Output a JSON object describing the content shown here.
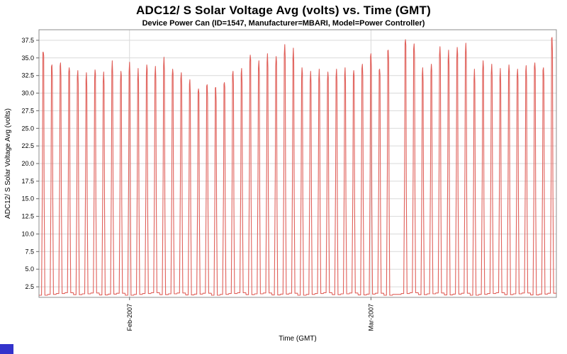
{
  "header": {
    "title": "ADC12/ S Solar Voltage Avg (volts) vs. Time (GMT)",
    "subtitle": "Device Power Can (ID=1547, Manufacturer=MBARI, Model=Power Controller)"
  },
  "chart_data": {
    "type": "line",
    "title": "ADC12/ S Solar Voltage Avg (volts) vs. Time (GMT)",
    "subtitle": "Device Power Can (ID=1547, Manufacturer=MBARI, Model=Power Controller)",
    "xlabel": "Time (GMT)",
    "ylabel": "ADC12/ S Solar Voltage Avg (volts)",
    "legend": "none",
    "grid": "on",
    "series_color": "#e0605a",
    "grid_color": "#d9d9d9",
    "plot_border_color": "#8c8c8c",
    "tick_color": "#666666",
    "ylim": [
      1.0,
      39.0
    ],
    "y_ticks": [
      2.5,
      5.0,
      7.5,
      10.0,
      12.5,
      15.0,
      17.5,
      20.0,
      22.5,
      25.0,
      27.5,
      30.0,
      32.5,
      35.0,
      37.5
    ],
    "x_span_days": 60,
    "x_ticks": [
      {
        "label": "Feb-2007",
        "day": 10.5
      },
      {
        "label": "Mar-2007",
        "day": 38.5
      }
    ],
    "baseline_low_volts": 1.5,
    "daily_peaks_volts": [
      35.8,
      34.0,
      34.3,
      33.6,
      33.2,
      32.9,
      33.3,
      33.0,
      34.6,
      33.1,
      34.4,
      33.5,
      34.0,
      33.8,
      35.1,
      33.4,
      32.9,
      31.9,
      30.6,
      31.2,
      30.8,
      31.5,
      33.1,
      33.5,
      35.4,
      34.6,
      35.6,
      35.2,
      36.9,
      36.4,
      33.6,
      33.1,
      33.4,
      33.0,
      33.4,
      33.6,
      33.2,
      34.1,
      35.6,
      33.4,
      36.1,
      null,
      37.6,
      37.0,
      33.6,
      34.1,
      36.6,
      36.1,
      36.5,
      37.1,
      33.4,
      34.6,
      34.1,
      33.5,
      34.0,
      33.4,
      33.9,
      34.3,
      33.6,
      37.9
    ]
  },
  "corner_artifact": {
    "color": "#3333cc"
  }
}
